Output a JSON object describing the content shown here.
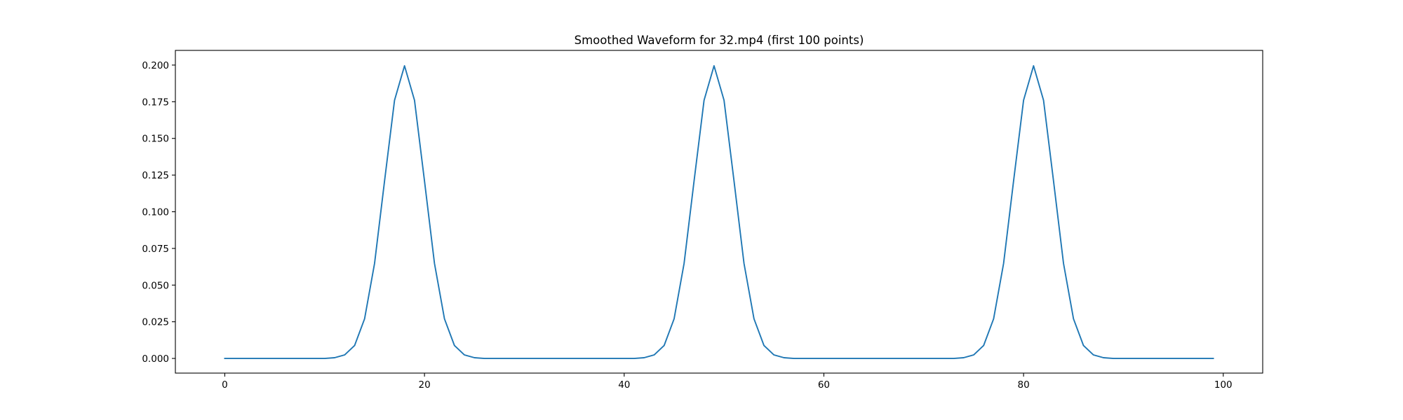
{
  "chart_data": {
    "type": "line",
    "title": "Smoothed Waveform for 32.mp4 (first 100 points)",
    "xlabel": "",
    "ylabel": "",
    "xlim": [
      -4.95,
      103.95
    ],
    "ylim": [
      -0.01,
      0.21
    ],
    "grid": false,
    "legend": "none",
    "x_ticks": [
      0,
      20,
      40,
      60,
      80,
      100
    ],
    "x_tick_labels": [
      "0",
      "20",
      "40",
      "60",
      "80",
      "100"
    ],
    "y_ticks": [
      0,
      0.025,
      0.05,
      0.075,
      0.1,
      0.125,
      0.15,
      0.175,
      0.2
    ],
    "y_tick_labels": [
      "0.000",
      "0.025",
      "0.050",
      "0.075",
      "0.100",
      "0.125",
      "0.150",
      "0.175",
      "0.200"
    ],
    "series": [
      {
        "color": "#1f77b4",
        "x": [
          0,
          1,
          2,
          3,
          4,
          5,
          6,
          7,
          8,
          9,
          10,
          11,
          12,
          13,
          14,
          15,
          16,
          17,
          18,
          19,
          20,
          21,
          22,
          23,
          24,
          25,
          26,
          27,
          28,
          29,
          30,
          31,
          32,
          33,
          34,
          35,
          36,
          37,
          38,
          39,
          40,
          41,
          42,
          43,
          44,
          45,
          46,
          47,
          48,
          49,
          50,
          51,
          52,
          53,
          54,
          55,
          56,
          57,
          58,
          59,
          60,
          61,
          62,
          63,
          64,
          65,
          66,
          67,
          68,
          69,
          70,
          71,
          72,
          73,
          74,
          75,
          76,
          77,
          78,
          79,
          80,
          81,
          82,
          83,
          84,
          85,
          86,
          87,
          88,
          89,
          90,
          91,
          92,
          93,
          94,
          95,
          96,
          97,
          98,
          99
        ],
        "y": [
          0,
          0,
          0,
          0,
          0,
          0,
          0,
          0,
          0,
          0,
          0,
          0.0005,
          0.0024,
          0.0088,
          0.027,
          0.0648,
          0.121,
          0.176,
          0.1995,
          0.176,
          0.121,
          0.0648,
          0.027,
          0.0088,
          0.0024,
          0.0005,
          0,
          0,
          0,
          0,
          0,
          0,
          0,
          0,
          0,
          0,
          0,
          0,
          0,
          0,
          0,
          0,
          0.0005,
          0.0024,
          0.0088,
          0.027,
          0.0648,
          0.121,
          0.176,
          0.1995,
          0.176,
          0.121,
          0.0648,
          0.027,
          0.0088,
          0.0024,
          0.0005,
          0,
          0,
          0,
          0,
          0,
          0,
          0,
          0,
          0,
          0,
          0,
          0,
          0,
          0,
          0,
          0,
          0,
          0.0005,
          0.0024,
          0.0088,
          0.027,
          0.0648,
          0.121,
          0.176,
          0.1995,
          0.176,
          0.121,
          0.0648,
          0.027,
          0.0088,
          0.0024,
          0.0005,
          0,
          0,
          0,
          0,
          0,
          0,
          0,
          0,
          0,
          0,
          0
        ]
      }
    ]
  }
}
